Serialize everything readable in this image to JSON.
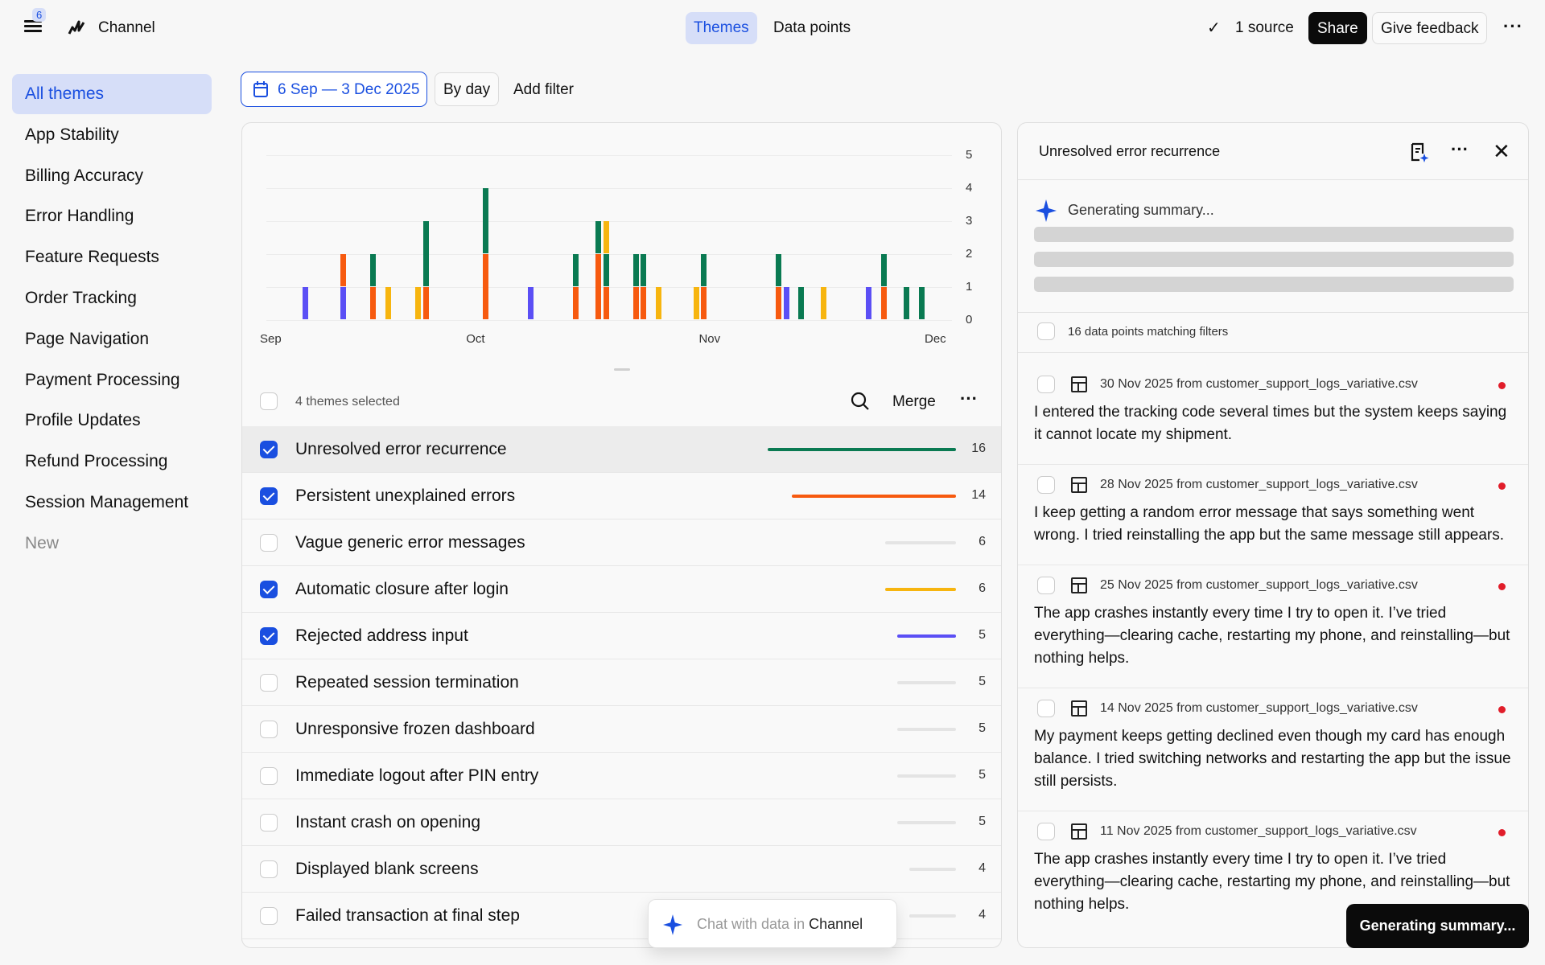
{
  "topbar": {
    "badge": "6",
    "app_name": "Channel",
    "tabs": [
      {
        "label": "Themes",
        "active": true
      },
      {
        "label": "Data points",
        "active": false
      }
    ],
    "source": "1 source",
    "share": "Share",
    "feedback": "Give feedback"
  },
  "sidebar": {
    "items": [
      {
        "label": "All themes"
      },
      {
        "label": "App Stability"
      },
      {
        "label": "Billing Accuracy"
      },
      {
        "label": "Error Handling"
      },
      {
        "label": "Feature Requests"
      },
      {
        "label": "Order Tracking"
      },
      {
        "label": "Page Navigation"
      },
      {
        "label": "Payment Processing"
      },
      {
        "label": "Profile Updates"
      },
      {
        "label": "Refund Processing"
      },
      {
        "label": "Session Management"
      },
      {
        "label": "New"
      }
    ]
  },
  "filters": {
    "date_range": "6 Sep — 3 Dec 2025",
    "granularity": "By day",
    "add_filter": "Add filter"
  },
  "colors": {
    "accent": "#1a4fe0",
    "green": "#0a7a52",
    "orange": "#f75a0f",
    "yellow": "#f7b50f",
    "blue": "#5b4ff5",
    "inactive": "#e4e4e4",
    "toast": "#0b0b0b"
  },
  "chart_data": {
    "type": "bar",
    "stacked": true,
    "xlim": [
      "2025-09-06",
      "2025-12-03"
    ],
    "ylim": [
      0,
      5
    ],
    "yticks": [
      "0",
      "1",
      "2",
      "3",
      "4",
      "5"
    ],
    "xticks": [
      "Sep",
      "Oct",
      "Nov",
      "Dec"
    ],
    "grid": true,
    "series": [
      {
        "name": "Rejected address input",
        "color": "#5b4ff5",
        "points": [
          [
            "2025-09-09",
            1
          ],
          [
            "2025-09-14",
            1
          ],
          [
            "2025-10-09",
            1
          ],
          [
            "2025-11-12",
            1
          ],
          [
            "2025-11-23",
            1
          ]
        ]
      },
      {
        "name": "Persistent unexplained errors",
        "color": "#f75a0f",
        "points": [
          [
            "2025-09-14",
            1
          ],
          [
            "2025-09-18",
            1
          ],
          [
            "2025-09-25",
            1
          ],
          [
            "2025-10-03",
            2
          ],
          [
            "2025-10-15",
            1
          ],
          [
            "2025-10-18",
            2
          ],
          [
            "2025-10-19",
            1
          ],
          [
            "2025-10-23",
            1
          ],
          [
            "2025-10-24",
            1
          ],
          [
            "2025-11-01",
            1
          ],
          [
            "2025-11-11",
            1
          ],
          [
            "2025-11-25",
            1
          ]
        ]
      },
      {
        "name": "Unresolved error recurrence",
        "color": "#0a7a52",
        "points": [
          [
            "2025-09-18",
            1
          ],
          [
            "2025-09-25",
            2
          ],
          [
            "2025-10-03",
            2
          ],
          [
            "2025-10-15",
            1
          ],
          [
            "2025-10-18",
            1
          ],
          [
            "2025-10-19",
            1
          ],
          [
            "2025-10-23",
            1
          ],
          [
            "2025-10-24",
            1
          ],
          [
            "2025-11-01",
            1
          ],
          [
            "2025-11-11",
            1
          ],
          [
            "2025-11-14",
            1
          ],
          [
            "2025-11-25",
            1
          ],
          [
            "2025-11-28",
            1
          ],
          [
            "2025-11-30",
            1
          ]
        ]
      },
      {
        "name": "Automatic closure after login",
        "color": "#f7b50f",
        "points": [
          [
            "2025-09-20",
            1
          ],
          [
            "2025-09-24",
            1
          ],
          [
            "2025-10-19",
            1
          ],
          [
            "2025-10-26",
            1
          ],
          [
            "2025-10-31",
            1
          ],
          [
            "2025-11-17",
            1
          ]
        ]
      }
    ]
  },
  "list": {
    "selected_label": "4 themes selected",
    "merge": "Merge",
    "themes": [
      {
        "name": "Unresolved error recurrence",
        "count": 16,
        "checked": true,
        "color": "#0a7a52"
      },
      {
        "name": "Persistent unexplained errors",
        "count": 14,
        "checked": true,
        "color": "#f75a0f"
      },
      {
        "name": "Vague generic error messages",
        "count": 6,
        "checked": false
      },
      {
        "name": "Automatic closure after login",
        "count": 6,
        "checked": true,
        "color": "#f7b50f"
      },
      {
        "name": "Rejected address input",
        "count": 5,
        "checked": true,
        "color": "#5b4ff5"
      },
      {
        "name": "Repeated session termination",
        "count": 5,
        "checked": false
      },
      {
        "name": "Unresponsive frozen dashboard",
        "count": 5,
        "checked": false
      },
      {
        "name": "Immediate logout after PIN entry",
        "count": 5,
        "checked": false
      },
      {
        "name": "Instant crash on opening",
        "count": 5,
        "checked": false
      },
      {
        "name": "Displayed blank screens",
        "count": 4,
        "checked": false
      },
      {
        "name": "Failed transaction at final step",
        "count": 4,
        "checked": false
      }
    ]
  },
  "panel": {
    "title": "Unresolved error recurrence",
    "generating": "Generating summary...",
    "matching": "16 data points matching filters",
    "items": [
      {
        "meta": "30 Nov 2025 from customer_support_logs_variative.csv",
        "text": "I entered the tracking code several times but the system keeps saying it cannot locate my shipment."
      },
      {
        "meta": "28 Nov 2025 from customer_support_logs_variative.csv",
        "text": "I keep getting a random error message that says something went wrong. I tried reinstalling the app but the same message still appears."
      },
      {
        "meta": "25 Nov 2025 from customer_support_logs_variative.csv",
        "text": "The app crashes instantly every time I try to open it. I’ve tried everything—clearing cache, restarting my phone, and reinstalling—but nothing helps."
      },
      {
        "meta": "14 Nov 2025 from customer_support_logs_variative.csv",
        "text": "My payment keeps getting declined even though my card has enough balance. I tried switching networks and restarting the app but the issue still persists."
      },
      {
        "meta": "11 Nov 2025 from customer_support_logs_variative.csv",
        "text": "The app crashes instantly every time I try to open it. I’ve tried everything—clearing cache, restarting my phone, and reinstalling—but nothing helps."
      }
    ]
  },
  "chat": {
    "prefix": "Chat with data in ",
    "brand": "Channel"
  },
  "toast": "Generating summary..."
}
